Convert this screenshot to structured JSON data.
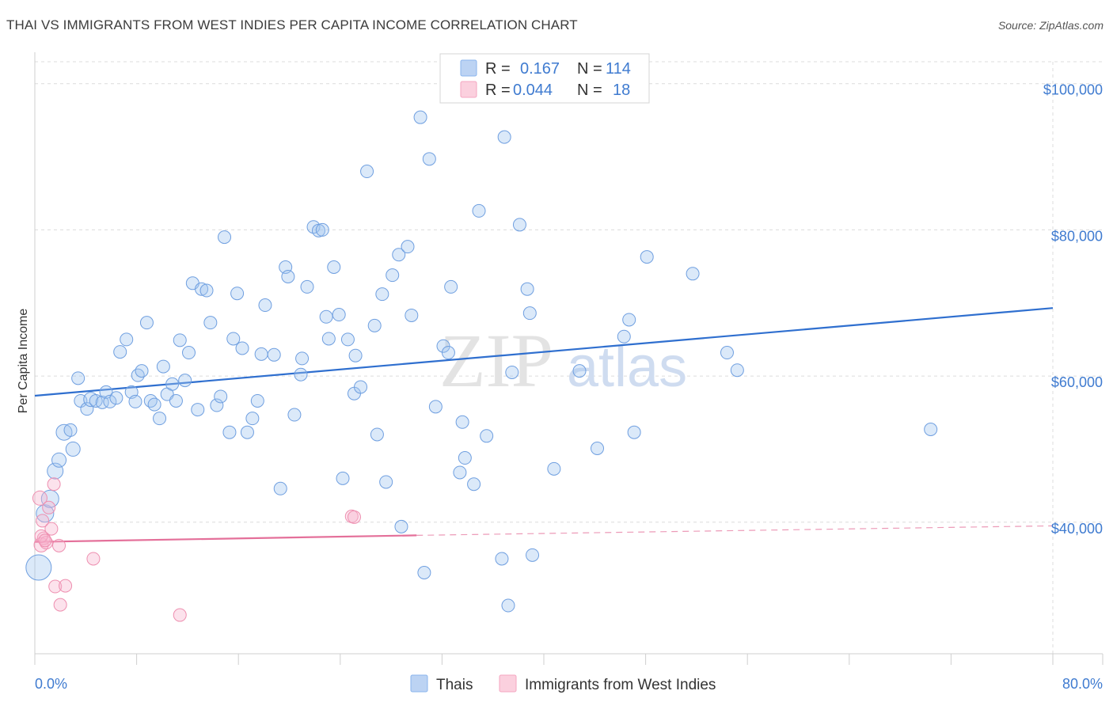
{
  "chart_data": {
    "type": "scatter",
    "title": "THAI VS IMMIGRANTS FROM WEST INDIES PER CAPITA INCOME CORRELATION CHART",
    "source": "Source: ZipAtlas.com",
    "ylabel": "Per Capita Income",
    "xlim": [
      0,
      80
    ],
    "ylim": [
      22000,
      103000
    ],
    "x_tick_labels": [
      "0.0%",
      "80.0%"
    ],
    "y_ticks": [
      {
        "value": 40000,
        "label": "$40,000"
      },
      {
        "value": 60000,
        "label": "$60,000"
      },
      {
        "value": 80000,
        "label": "$80,000"
      },
      {
        "value": 100000,
        "label": "$100,000"
      }
    ],
    "legend": {
      "rows": [
        {
          "r_label": "R =",
          "r_value": "0.167",
          "n_label": "N =",
          "n_value": "114",
          "color": "#8ab4ec"
        },
        {
          "r_label": "R =",
          "r_value": "0.044",
          "n_label": "N =",
          "n_value": "18",
          "color": "#f4a6c0"
        }
      ]
    },
    "bottom_legend": [
      "Thais",
      "Immigrants from West Indies"
    ],
    "watermark": {
      "part1": "ZIP",
      "part2": "atlas"
    },
    "series": [
      {
        "name": "Thais",
        "color": "#8ab4ec",
        "stroke": "#6f9fe0",
        "trend": {
          "x0": 0,
          "y0": 57300,
          "x1": 80,
          "y1": 69300,
          "color": "#2f6fcf"
        },
        "points": [
          [
            0.3,
            33800,
            16
          ],
          [
            0.8,
            41200,
            11
          ],
          [
            1.2,
            43200,
            11
          ],
          [
            1.6,
            47000,
            10
          ],
          [
            1.9,
            48500,
            9
          ],
          [
            2.3,
            52300,
            10
          ],
          [
            2.8,
            52600,
            8
          ],
          [
            3.0,
            50000,
            9
          ],
          [
            3.4,
            59700,
            8
          ],
          [
            3.6,
            56600,
            8
          ],
          [
            4.1,
            55500,
            8
          ],
          [
            4.4,
            56800,
            9
          ],
          [
            4.8,
            56600,
            8
          ],
          [
            5.3,
            56400,
            8
          ],
          [
            5.6,
            57800,
            8
          ],
          [
            5.9,
            56500,
            8
          ],
          [
            6.4,
            57000,
            8
          ],
          [
            6.7,
            63300,
            8
          ],
          [
            7.2,
            65000,
            8
          ],
          [
            7.6,
            57800,
            8
          ],
          [
            7.9,
            56500,
            8
          ],
          [
            8.1,
            60100,
            8
          ],
          [
            8.4,
            60700,
            8
          ],
          [
            8.8,
            67300,
            8
          ],
          [
            9.1,
            56600,
            8
          ],
          [
            9.4,
            56100,
            8
          ],
          [
            9.8,
            54200,
            8
          ],
          [
            10.1,
            61300,
            8
          ],
          [
            10.4,
            57500,
            8
          ],
          [
            10.8,
            58900,
            8
          ],
          [
            11.1,
            56600,
            8
          ],
          [
            11.4,
            64900,
            8
          ],
          [
            11.8,
            59400,
            8
          ],
          [
            12.1,
            63200,
            8
          ],
          [
            12.4,
            72700,
            8
          ],
          [
            12.8,
            55400,
            8
          ],
          [
            13.1,
            71900,
            8
          ],
          [
            13.5,
            71700,
            8
          ],
          [
            13.8,
            67300,
            8
          ],
          [
            14.3,
            56000,
            8
          ],
          [
            14.6,
            57200,
            8
          ],
          [
            14.9,
            79000,
            8
          ],
          [
            15.3,
            52300,
            8
          ],
          [
            15.6,
            65100,
            8
          ],
          [
            15.9,
            71300,
            8
          ],
          [
            16.3,
            63800,
            8
          ],
          [
            16.7,
            52300,
            8
          ],
          [
            17.1,
            54200,
            8
          ],
          [
            17.5,
            56600,
            8
          ],
          [
            17.8,
            63000,
            8
          ],
          [
            18.1,
            69700,
            8
          ],
          [
            18.8,
            62900,
            8
          ],
          [
            19.3,
            44600,
            8
          ],
          [
            19.7,
            74900,
            8
          ],
          [
            19.9,
            73600,
            8
          ],
          [
            20.4,
            54700,
            8
          ],
          [
            20.9,
            60200,
            8
          ],
          [
            21.0,
            62400,
            8
          ],
          [
            21.4,
            72200,
            8
          ],
          [
            21.9,
            80400,
            8
          ],
          [
            22.3,
            79900,
            8
          ],
          [
            22.6,
            80000,
            8
          ],
          [
            22.9,
            68100,
            8
          ],
          [
            23.1,
            65100,
            8
          ],
          [
            23.5,
            74900,
            8
          ],
          [
            23.9,
            68400,
            8
          ],
          [
            24.2,
            46000,
            8
          ],
          [
            24.6,
            65000,
            8
          ],
          [
            25.1,
            57600,
            8
          ],
          [
            25.2,
            62800,
            8
          ],
          [
            25.6,
            58500,
            8
          ],
          [
            26.1,
            88000,
            8
          ],
          [
            26.7,
            66900,
            8
          ],
          [
            26.9,
            52000,
            8
          ],
          [
            27.3,
            71200,
            8
          ],
          [
            27.6,
            45500,
            8
          ],
          [
            28.1,
            73800,
            8
          ],
          [
            28.6,
            76600,
            8
          ],
          [
            28.8,
            39400,
            8
          ],
          [
            29.3,
            77700,
            8
          ],
          [
            29.6,
            68300,
            8
          ],
          [
            30.3,
            95400,
            8
          ],
          [
            30.6,
            33100,
            8
          ],
          [
            31.0,
            89700,
            8
          ],
          [
            31.5,
            55800,
            8
          ],
          [
            32.1,
            64100,
            8
          ],
          [
            32.5,
            63200,
            8
          ],
          [
            32.7,
            72200,
            8
          ],
          [
            33.4,
            46800,
            8
          ],
          [
            33.6,
            53700,
            8
          ],
          [
            33.8,
            48800,
            8
          ],
          [
            34.5,
            45200,
            8
          ],
          [
            34.9,
            82600,
            8
          ],
          [
            35.5,
            51800,
            8
          ],
          [
            36.7,
            35000,
            8
          ],
          [
            36.9,
            92700,
            8
          ],
          [
            37.2,
            28600,
            8
          ],
          [
            37.5,
            60500,
            8
          ],
          [
            38.1,
            80700,
            8
          ],
          [
            38.7,
            71900,
            8
          ],
          [
            38.9,
            68600,
            8
          ],
          [
            39.1,
            35500,
            8
          ],
          [
            40.8,
            47300,
            8
          ],
          [
            42.8,
            60700,
            8
          ],
          [
            44.2,
            50100,
            8
          ],
          [
            46.3,
            65400,
            8
          ],
          [
            46.7,
            67700,
            8
          ],
          [
            47.1,
            52300,
            8
          ],
          [
            48.1,
            76300,
            8
          ],
          [
            51.7,
            74000,
            8
          ],
          [
            54.4,
            63200,
            8
          ],
          [
            55.2,
            60800,
            8
          ],
          [
            70.4,
            52700,
            8
          ]
        ]
      },
      {
        "name": "Immigrants from West Indies",
        "color": "#f4a6c0",
        "stroke": "#ee8fb0",
        "trend": {
          "x0": 0,
          "y0": 37300,
          "x1": 30,
          "y1": 38200,
          "dash_to_x": 80,
          "dash_to_y": 39500,
          "color": "#e4709a"
        },
        "points": [
          [
            0.4,
            43300,
            9
          ],
          [
            0.5,
            36900,
            9
          ],
          [
            0.6,
            40200,
            8
          ],
          [
            0.7,
            37800,
            8
          ],
          [
            0.9,
            37200,
            8
          ],
          [
            1.1,
            42000,
            8
          ],
          [
            1.3,
            39100,
            8
          ],
          [
            1.5,
            45200,
            8
          ],
          [
            1.6,
            31200,
            8
          ],
          [
            1.9,
            36800,
            8
          ],
          [
            2.0,
            28700,
            8
          ],
          [
            2.4,
            31300,
            8
          ],
          [
            4.6,
            35000,
            8
          ],
          [
            11.4,
            27300,
            8
          ],
          [
            24.9,
            40800,
            8
          ],
          [
            25.1,
            40700,
            8
          ],
          [
            0.5,
            38100,
            8
          ],
          [
            0.8,
            37500,
            8
          ]
        ]
      }
    ]
  }
}
